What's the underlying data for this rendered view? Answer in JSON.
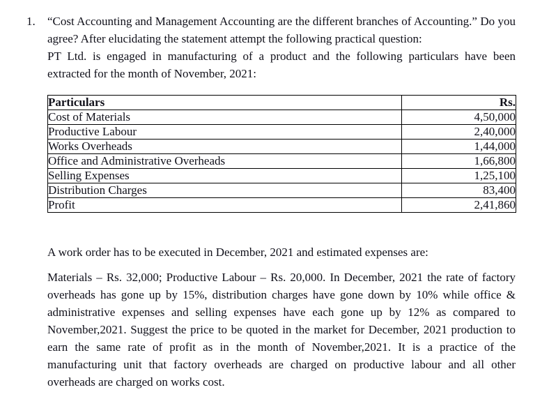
{
  "document": {
    "question_number": "1.",
    "intro_paragraph_1": "“Cost Accounting and Management Accounting are the different branches of Accounting.” Do you agree? After elucidating the statement attempt the following practical question:",
    "intro_paragraph_2": "PT Ltd. is engaged in manufacturing of a product and the following particulars have been extracted for the month of November, 2021:",
    "work_order_line": "A work order has to be executed in December, 2021 and estimated expenses are:",
    "details_paragraph": "Materials – Rs. 32,000; Productive Labour – Rs. 20,000. In December, 2021 the rate of factory overheads has gone up by 15%, distribution charges have gone down by 10% while office & administrative expenses and selling expenses have each gone up by 12% as compared to November,2021. Suggest the price to be quoted in the market for December, 2021 production to earn the same rate of profit as in the month of November,2021. It is a practice of the manufacturing unit that factory overheads are charged on productive labour and all other overheads are charged on works cost."
  },
  "table": {
    "headers": [
      "Particulars",
      "Rs."
    ],
    "rows": [
      [
        "Cost of Materials",
        "4,50,000"
      ],
      [
        "Productive Labour",
        "2,40,000"
      ],
      [
        "Works Overheads",
        "1,44,000"
      ],
      [
        "Office and Administrative Overheads",
        "1,66,800"
      ],
      [
        "Selling Expenses",
        "1,25,100"
      ],
      [
        "Distribution Charges",
        "83,400"
      ],
      [
        "Profit",
        "2,41,860"
      ]
    ]
  },
  "colors": {
    "text": "#10101a",
    "border": "#000000",
    "background": "#ffffff"
  }
}
